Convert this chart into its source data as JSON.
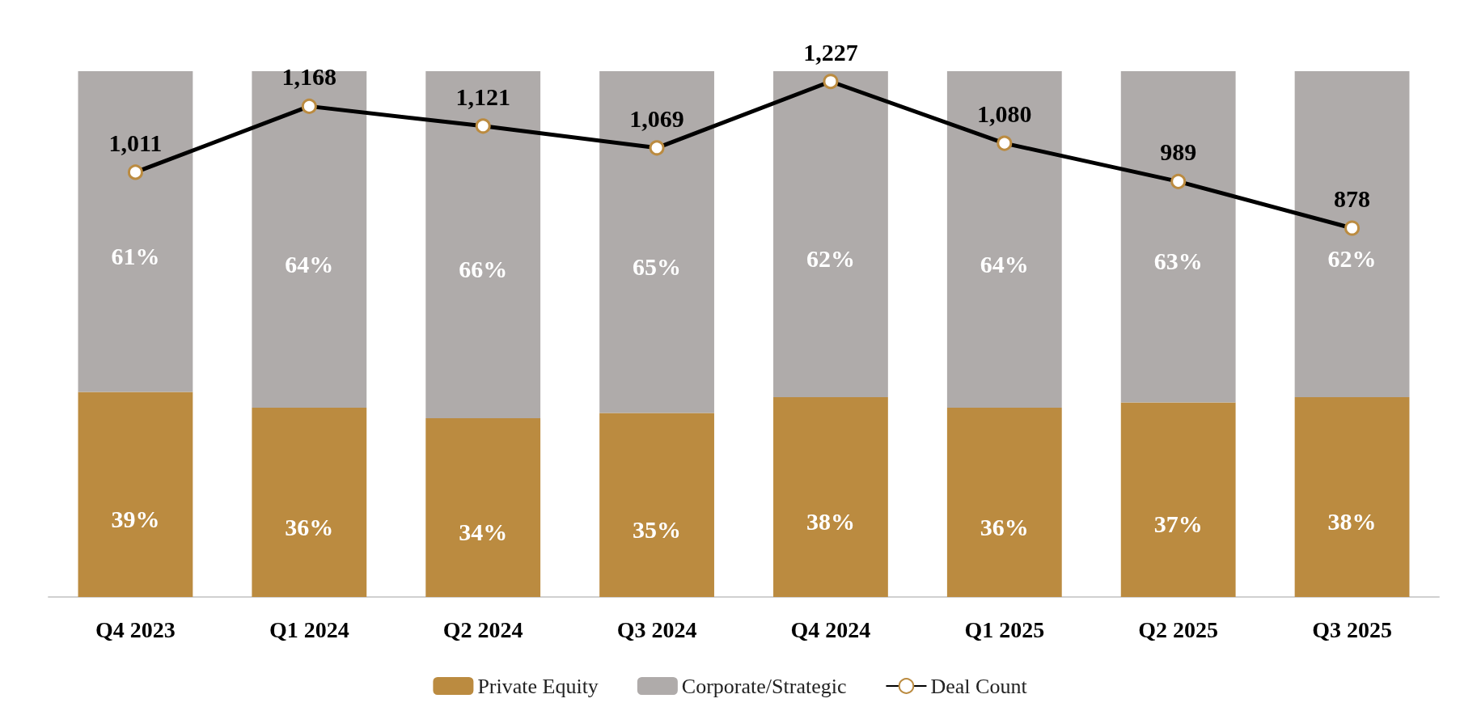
{
  "chart_data": {
    "type": "bar",
    "stacked": true,
    "categories": [
      "Q4 2023",
      "Q1 2024",
      "Q2 2024",
      "Q3 2024",
      "Q4 2024",
      "Q1 2025",
      "Q2 2025",
      "Q3 2025"
    ],
    "series": [
      {
        "name": "Private Equity",
        "color": "#bb8b40",
        "values": [
          39,
          36,
          34,
          35,
          38,
          36,
          37,
          38
        ],
        "value_labels": [
          "39%",
          "36%",
          "34%",
          "35%",
          "38%",
          "36%",
          "37%",
          "38%"
        ]
      },
      {
        "name": "Corporate/Strategic",
        "color": "#afabaa",
        "values": [
          61,
          64,
          66,
          65,
          62,
          64,
          63,
          62
        ],
        "value_labels": [
          "61%",
          "64%",
          "66%",
          "65%",
          "62%",
          "64%",
          "63%",
          "62%"
        ]
      },
      {
        "name": "Deal Count",
        "type": "line",
        "axis": "y2",
        "color": "#000000",
        "marker": "circle",
        "values": [
          1011,
          1168,
          1121,
          1069,
          1227,
          1080,
          989,
          878
        ],
        "value_labels": [
          "1,011",
          "1,168",
          "1,121",
          "1,069",
          "1,227",
          "1,080",
          "989",
          "878"
        ]
      }
    ],
    "tick_labels": "x",
    "grid": false,
    "legend": "bottom"
  }
}
